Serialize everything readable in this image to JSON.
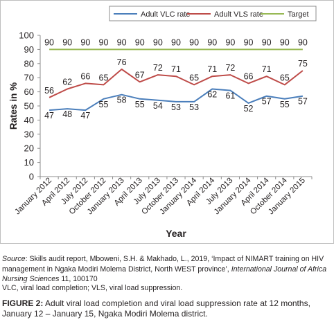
{
  "chart_data": {
    "type": "line",
    "categories": [
      "January 2012",
      "April 2012",
      "July 2012",
      "October 2012",
      "January 2013",
      "April 2013",
      "July 2013",
      "October 2013",
      "January 2014",
      "April 2014",
      "July 2013",
      "January 2014",
      "April 2014",
      "October 2014",
      "January 2015"
    ],
    "series": [
      {
        "name": "Adult VLC rate",
        "color": "#4a7ebb",
        "values": [
          47,
          48,
          47,
          55,
          58,
          55,
          54,
          53,
          53,
          62,
          61,
          52,
          57,
          55,
          57
        ]
      },
      {
        "name": "Adult VLS rate",
        "color": "#be4b48",
        "values": [
          56,
          62,
          66,
          65,
          76,
          67,
          72,
          71,
          65,
          71,
          72,
          66,
          71,
          65,
          75
        ]
      },
      {
        "name": "Target",
        "color": "#98b954",
        "values": [
          90,
          90,
          90,
          90,
          90,
          90,
          90,
          90,
          90,
          90,
          90,
          90,
          90,
          90,
          90
        ]
      }
    ],
    "xlabel": "Year",
    "ylabel": "Rates in %",
    "ylim": [
      0,
      100
    ],
    "yticks": [
      "0",
      "10",
      "20",
      "30",
      "40",
      "50",
      "60",
      "70",
      "80",
      "90",
      "100"
    ],
    "legend_position": "top-right",
    "grid": false
  },
  "caption": {
    "source_label": "Source",
    "source_text_1": ": Skills audit report, Mboweni, S.H. & Makhado, L., 2019, ‘Impact of NIMART training on HIV management in Ngaka Modiri Molema District, North WEST province’, ",
    "source_journal": "International Journal of Africa Nursing Sciences",
    "source_text_2": " 11, 100170",
    "abbreviations": "VLC, viral load completion; VLS, viral load suppression.",
    "figure_label": "FIGURE 2:",
    "figure_text": " Adult viral load completion and viral load suppression rate at 12 months, January 12 – January 15, Ngaka Modiri Molema district."
  }
}
